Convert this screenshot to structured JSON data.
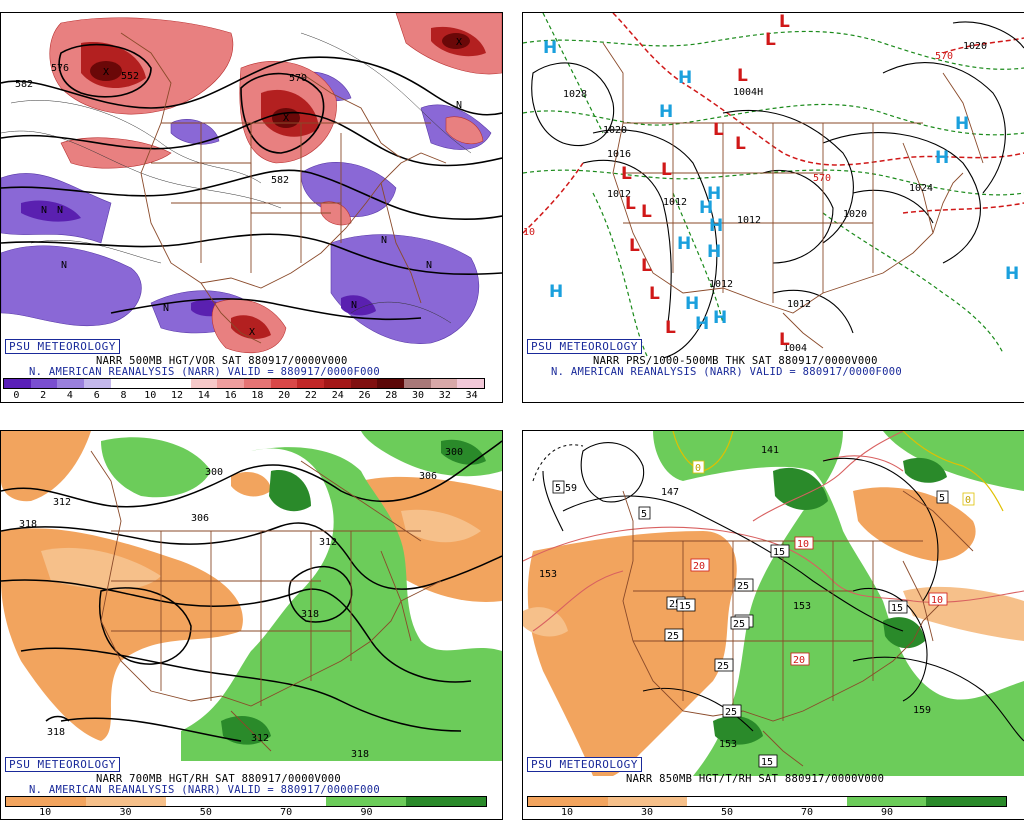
{
  "panels": [
    {
      "badge": "PSU METEOROLOGY",
      "caption1": "NARR 500MB HGT/VOR SAT 880917/0000V000",
      "caption2": "N. AMERICAN REANALYSIS (NARR) VALID = 880917/0000F000",
      "colorbar": {
        "labels": [
          "0",
          "2",
          "4",
          "6",
          "8",
          "10",
          "12",
          "14",
          "16",
          "18",
          "20",
          "22",
          "24",
          "26",
          "28",
          "30",
          "32",
          "34"
        ],
        "colors": [
          "#5a1fb8",
          "#7a4fd0",
          "#9a80dd",
          "#c4b8ec",
          "#ffffff",
          "#ffffff",
          "#ffffff",
          "#f6c8c8",
          "#ef9e9e",
          "#e57474",
          "#d94848",
          "#c22828",
          "#a31818",
          "#801010",
          "#5c0808",
          "#a87878",
          "#d8a8a8",
          "#f2c8d8"
        ]
      },
      "contour_labels": [
        "582",
        "576",
        "570",
        "552",
        "582"
      ],
      "symbols": [
        "N",
        "N",
        "N",
        "N",
        "N",
        "N",
        "N",
        "N",
        "X",
        "X",
        "X",
        "X"
      ]
    },
    {
      "badge": "PSU METEOROLOGY",
      "caption1": "NARR PRS/1000-500MB THK SAT 880917/0000V000",
      "caption2": "N. AMERICAN REANALYSIS (NARR) VALID = 880917/0000F000",
      "contour_labels": [
        "1028",
        "1020",
        "1016",
        "1012",
        "1012",
        "1012",
        "1020",
        "1024",
        "1012",
        "1012",
        "1004",
        "1020",
        "1004H",
        "570",
        "570",
        "10"
      ],
      "symbols": [
        "H",
        "H",
        "H",
        "H",
        "H",
        "H",
        "H",
        "H",
        "H",
        "H",
        "H",
        "H",
        "H",
        "H",
        "H",
        "L",
        "L",
        "L",
        "L",
        "L",
        "L",
        "L",
        "L",
        "L",
        "L",
        "L",
        "L",
        "L",
        "L"
      ]
    },
    {
      "badge": "PSU METEOROLOGY",
      "caption1": "NARR 700MB HGT/RH SAT 880917/0000V000",
      "caption2": "N. AMERICAN REANALYSIS (NARR) VALID = 880917/0000F000",
      "colorbar": {
        "labels": [
          "10",
          "30",
          "50",
          "70",
          "90"
        ],
        "colors": [
          "#f2a45e",
          "#f6c08a",
          "#ffffff",
          "#ffffff",
          "#6ccc5a",
          "#2a8a2a"
        ]
      },
      "contour_labels": [
        "312",
        "318",
        "300",
        "306",
        "306",
        "300",
        "312",
        "318",
        "318",
        "318",
        "312"
      ]
    },
    {
      "badge": "PSU METEOROLOGY",
      "caption1": "NARR 850MB HGT/T/RH SAT 880917/0000V000",
      "caption2": "",
      "colorbar": {
        "labels": [
          "10",
          "30",
          "50",
          "70",
          "90"
        ],
        "colors": [
          "#f2a45e",
          "#f6c08a",
          "#ffffff",
          "#ffffff",
          "#6ccc5a",
          "#2a8a2a"
        ]
      },
      "contour_labels": [
        "159",
        "147",
        "141",
        "153",
        "153",
        "159",
        "153"
      ],
      "boxed_labels": [
        "5",
        "5",
        "0",
        "5",
        "0",
        "15",
        "10",
        "20",
        "25",
        "25",
        "25",
        "25",
        "25",
        "25",
        "20",
        "25",
        "15",
        "10",
        "15",
        "15"
      ]
    }
  ]
}
